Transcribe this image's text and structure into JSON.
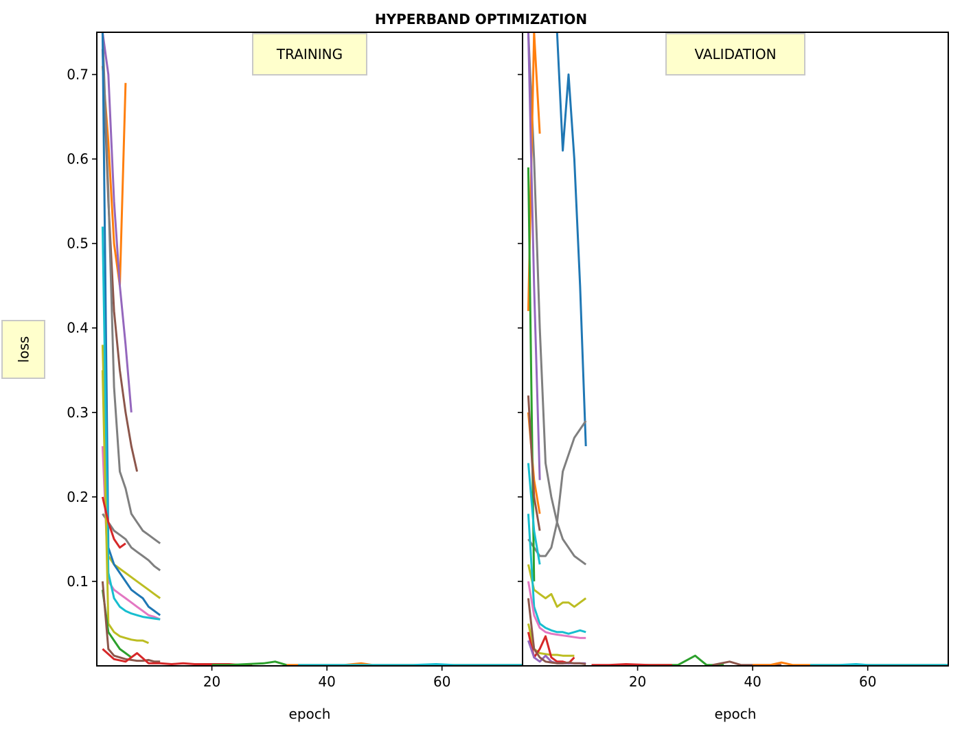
{
  "figure": {
    "suptitle": "HYPERBAND OPTIMIZATION",
    "ylabel": "loss"
  },
  "chart_data": [
    {
      "type": "line",
      "title": "TRAINING",
      "xlabel": "epoch",
      "ylabel": "loss",
      "xlim": [
        0,
        74
      ],
      "ylim": [
        0,
        0.75
      ],
      "xticks": [
        20,
        40,
        60
      ],
      "yticks": [
        0.1,
        0.2,
        0.3,
        0.4,
        0.5,
        0.6,
        0.7
      ],
      "grid": false,
      "series": [
        {
          "color": "#ff7f0e",
          "x": [
            1,
            2,
            3,
            4,
            5
          ],
          "y": [
            0.71,
            0.62,
            0.5,
            0.45,
            0.69
          ]
        },
        {
          "color": "#9467bd",
          "x": [
            1,
            2,
            3,
            4,
            5,
            6
          ],
          "y": [
            0.75,
            0.7,
            0.55,
            0.45,
            0.38,
            0.3
          ]
        },
        {
          "color": "#8c564b",
          "x": [
            1,
            2,
            3,
            4,
            5,
            6,
            7
          ],
          "y": [
            0.73,
            0.55,
            0.42,
            0.35,
            0.3,
            0.26,
            0.23
          ]
        },
        {
          "color": "#7f7f7f",
          "x": [
            1,
            2,
            3,
            4,
            5,
            6,
            7,
            8,
            9,
            10,
            11
          ],
          "y": [
            0.75,
            0.56,
            0.33,
            0.23,
            0.21,
            0.18,
            0.17,
            0.16,
            0.155,
            0.15,
            0.145
          ]
        },
        {
          "color": "#7f7f7f",
          "x": [
            1,
            2,
            3,
            4,
            5,
            6,
            7,
            8,
            9,
            10,
            11
          ],
          "y": [
            0.18,
            0.17,
            0.16,
            0.155,
            0.15,
            0.14,
            0.135,
            0.13,
            0.125,
            0.118,
            0.113
          ]
        },
        {
          "color": "#bcbd22",
          "x": [
            1,
            2,
            3,
            4,
            5,
            6,
            7,
            8,
            9,
            10,
            11
          ],
          "y": [
            0.38,
            0.13,
            0.12,
            0.115,
            0.11,
            0.105,
            0.1,
            0.095,
            0.09,
            0.085,
            0.08
          ]
        },
        {
          "color": "#1f77b4",
          "x": [
            1,
            2,
            3,
            4,
            5,
            6,
            7,
            8,
            9,
            10,
            11
          ],
          "y": [
            0.75,
            0.14,
            0.12,
            0.11,
            0.1,
            0.09,
            0.085,
            0.08,
            0.07,
            0.065,
            0.06
          ]
        },
        {
          "color": "#e377c2",
          "x": [
            1,
            2,
            3,
            4,
            5,
            6,
            7,
            8,
            9,
            10,
            11
          ],
          "y": [
            0.26,
            0.1,
            0.09,
            0.085,
            0.08,
            0.075,
            0.07,
            0.065,
            0.06,
            0.058,
            0.055
          ]
        },
        {
          "color": "#17becf",
          "x": [
            1,
            2,
            3,
            4,
            5,
            6,
            7,
            8,
            9,
            10,
            11
          ],
          "y": [
            0.52,
            0.11,
            0.08,
            0.07,
            0.065,
            0.062,
            0.06,
            0.058,
            0.057,
            0.056,
            0.055
          ]
        },
        {
          "color": "#bcbd22",
          "x": [
            1,
            2,
            3,
            4,
            5,
            6,
            7,
            8,
            9
          ],
          "y": [
            0.35,
            0.05,
            0.04,
            0.035,
            0.033,
            0.031,
            0.03,
            0.03,
            0.027
          ]
        },
        {
          "color": "#d62728",
          "x": [
            1,
            2,
            3,
            4,
            5
          ],
          "y": [
            0.2,
            0.17,
            0.15,
            0.14,
            0.145
          ]
        },
        {
          "color": "#2ca02c",
          "x": [
            1,
            2,
            3,
            4,
            5,
            6
          ],
          "y": [
            0.09,
            0.04,
            0.03,
            0.02,
            0.015,
            0.01
          ]
        },
        {
          "color": "#8c564b",
          "x": [
            1,
            2,
            3,
            4,
            5,
            6,
            7,
            8,
            9,
            10,
            11
          ],
          "y": [
            0.1,
            0.02,
            0.012,
            0.01,
            0.008,
            0.007,
            0.006,
            0.006,
            0.007,
            0.005,
            0.005
          ]
        },
        {
          "color": "#d62728",
          "x": [
            1,
            3,
            5,
            7,
            9,
            11,
            13,
            15,
            17,
            19,
            21,
            23,
            25,
            27
          ],
          "y": [
            0.02,
            0.008,
            0.005,
            0.015,
            0.003,
            0.003,
            0.002,
            0.003,
            0.002,
            0.002,
            0.002,
            0.002,
            0.001,
            0.001
          ]
        },
        {
          "color": "#2ca02c",
          "x": [
            20,
            23,
            26,
            29,
            31,
            33
          ],
          "y": [
            0.001,
            0.001,
            0.002,
            0.003,
            0.005,
            0.001
          ]
        },
        {
          "color": "#ff7f0e",
          "x": [
            33,
            38,
            43,
            46,
            48,
            53,
            58,
            63,
            68,
            74
          ],
          "y": [
            0.001,
            0.001,
            0.001,
            0.003,
            0.001,
            0.001,
            0.001,
            0.001,
            0.001,
            0.001
          ]
        },
        {
          "color": "#17becf",
          "x": [
            35,
            40,
            45,
            50,
            55,
            59,
            62,
            67,
            72,
            74
          ],
          "y": [
            0.001,
            0.001,
            0.001,
            0.001,
            0.001,
            0.002,
            0.001,
            0.001,
            0.001,
            0.001
          ]
        }
      ]
    },
    {
      "type": "line",
      "title": "VALIDATION",
      "xlabel": "epoch",
      "ylabel": "",
      "xlim": [
        0,
        74
      ],
      "ylim": [
        0,
        0.75
      ],
      "xticks": [
        20,
        40,
        60
      ],
      "yticks": [
        0.1,
        0.2,
        0.3,
        0.4,
        0.5,
        0.6,
        0.7
      ],
      "grid": false,
      "series": [
        {
          "color": "#1f77b4",
          "x": [
            6,
            7,
            8,
            9,
            10,
            11
          ],
          "y": [
            0.75,
            0.61,
            0.7,
            0.6,
            0.45,
            0.26
          ]
        },
        {
          "color": "#7f7f7f",
          "x": [
            1,
            2,
            3,
            4,
            5,
            6,
            7,
            8,
            9,
            10,
            11
          ],
          "y": [
            0.75,
            0.6,
            0.4,
            0.24,
            0.2,
            0.17,
            0.15,
            0.14,
            0.13,
            0.125,
            0.12
          ]
        },
        {
          "color": "#7f7f7f",
          "x": [
            1,
            2,
            3,
            4,
            5,
            6,
            7,
            8,
            9,
            10,
            11
          ],
          "y": [
            0.15,
            0.14,
            0.13,
            0.13,
            0.14,
            0.17,
            0.23,
            0.25,
            0.27,
            0.28,
            0.29
          ]
        },
        {
          "color": "#ff7f0e",
          "x": [
            1,
            2,
            3
          ],
          "y": [
            0.42,
            0.75,
            0.63
          ]
        },
        {
          "color": "#ff7f0e",
          "x": [
            1,
            2,
            3
          ],
          "y": [
            0.3,
            0.22,
            0.18
          ]
        },
        {
          "color": "#9467bd",
          "x": [
            1,
            2,
            3
          ],
          "y": [
            0.75,
            0.45,
            0.22
          ]
        },
        {
          "color": "#2ca02c",
          "x": [
            1,
            2
          ],
          "y": [
            0.59,
            0.1
          ]
        },
        {
          "color": "#8c564b",
          "x": [
            1,
            2,
            3
          ],
          "y": [
            0.32,
            0.2,
            0.16
          ]
        },
        {
          "color": "#17becf",
          "x": [
            1,
            2,
            3
          ],
          "y": [
            0.24,
            0.16,
            0.12
          ]
        },
        {
          "color": "#bcbd22",
          "x": [
            1,
            2,
            3,
            4,
            5,
            6,
            7,
            8,
            9,
            10,
            11
          ],
          "y": [
            0.12,
            0.09,
            0.085,
            0.08,
            0.085,
            0.07,
            0.075,
            0.075,
            0.07,
            0.075,
            0.08
          ]
        },
        {
          "color": "#17becf",
          "x": [
            1,
            2,
            3,
            4,
            5,
            6,
            7,
            8,
            9,
            10,
            11
          ],
          "y": [
            0.18,
            0.07,
            0.05,
            0.045,
            0.042,
            0.04,
            0.04,
            0.038,
            0.04,
            0.042,
            0.04
          ]
        },
        {
          "color": "#e377c2",
          "x": [
            1,
            2,
            3,
            4,
            5,
            6,
            7,
            8,
            9,
            10,
            11
          ],
          "y": [
            0.1,
            0.06,
            0.045,
            0.04,
            0.038,
            0.037,
            0.036,
            0.035,
            0.034,
            0.033,
            0.033
          ]
        },
        {
          "color": "#bcbd22",
          "x": [
            1,
            2,
            3,
            4,
            5,
            6,
            7,
            8,
            9
          ],
          "y": [
            0.05,
            0.02,
            0.015,
            0.014,
            0.013,
            0.013,
            0.012,
            0.012,
            0.012
          ]
        },
        {
          "color": "#d62728",
          "x": [
            1,
            2,
            3,
            4,
            5,
            6,
            7,
            8,
            9
          ],
          "y": [
            0.04,
            0.01,
            0.02,
            0.035,
            0.01,
            0.005,
            0.005,
            0.003,
            0.01
          ]
        },
        {
          "color": "#9467bd",
          "x": [
            1,
            2,
            3,
            4,
            5,
            6,
            7,
            8,
            9,
            10,
            11
          ],
          "y": [
            0.03,
            0.01,
            0.005,
            0.012,
            0.005,
            0.003,
            0.003,
            0.003,
            0.003,
            0.003,
            0.003
          ]
        },
        {
          "color": "#8c564b",
          "x": [
            1,
            2,
            3,
            4,
            5,
            6,
            7,
            8,
            9,
            10,
            11
          ],
          "y": [
            0.08,
            0.02,
            0.01,
            0.005,
            0.004,
            0.003,
            0.003,
            0.004,
            0.003,
            0.003,
            0.002
          ]
        },
        {
          "color": "#2ca02c",
          "x": [
            20,
            24,
            27,
            30,
            32,
            35
          ],
          "y": [
            0.001,
            0.001,
            0.001,
            0.012,
            0.001,
            0.001
          ]
        },
        {
          "color": "#8c564b",
          "x": [
            33,
            36,
            38,
            42,
            45
          ],
          "y": [
            0.001,
            0.005,
            0.001,
            0.001,
            0.001
          ]
        },
        {
          "color": "#ff7f0e",
          "x": [
            40,
            43,
            45,
            47,
            52,
            58,
            63,
            68,
            74
          ],
          "y": [
            0.001,
            0.001,
            0.004,
            0.001,
            0.001,
            0.001,
            0.001,
            0.001,
            0.001
          ]
        },
        {
          "color": "#17becf",
          "x": [
            50,
            55,
            58,
            60,
            65,
            70,
            74
          ],
          "y": [
            0.001,
            0.001,
            0.002,
            0.001,
            0.001,
            0.001,
            0.001
          ]
        },
        {
          "color": "#d62728",
          "x": [
            12,
            15,
            18,
            22,
            26
          ],
          "y": [
            0.001,
            0.001,
            0.002,
            0.001,
            0.001
          ]
        }
      ]
    }
  ]
}
